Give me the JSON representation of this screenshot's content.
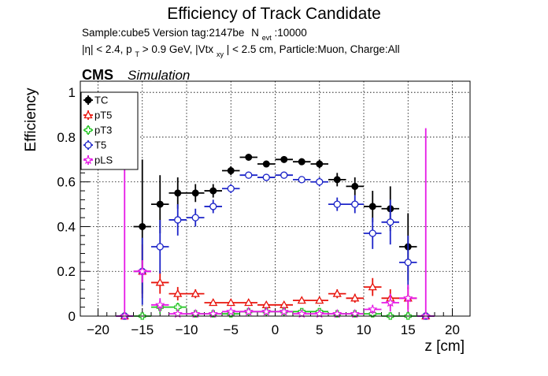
{
  "chart_data": {
    "type": "scatter",
    "title": "Efficiency of Track Candidate",
    "subtitle_line1": "Sample:cube5   Version tag:2147be",
    "subtitle_nevt_label": "N",
    "subtitle_nevt_sub": "evt",
    "subtitle_nevt_value": ":10000",
    "subtitle_line2_a": "|η| < 2.4, p",
    "subtitle_line2_sub1": "T",
    "subtitle_line2_b": " > 0.9 GeV, |Vtx",
    "subtitle_line2_sub2": "xy",
    "subtitle_line2_c": "| < 2.5 cm, Particle:Muon, Charge:All",
    "cms_label": "CMS",
    "simulation_label": "Simulation",
    "xlabel": "z [cm]",
    "ylabel": "Efficiency",
    "xlim": [
      -22,
      22
    ],
    "ylim": [
      0,
      1.05
    ],
    "grid": true,
    "legend_position": "top-left",
    "x_ticks": [
      -20,
      -15,
      -10,
      -5,
      0,
      5,
      10,
      15,
      20
    ],
    "y_ticks": [
      0,
      0.2,
      0.4,
      0.6,
      0.8,
      1
    ],
    "y_tick_labels": [
      "0",
      "0.2",
      "0.4",
      "0.6",
      "0.8",
      "1"
    ],
    "bin_half_width": 1,
    "series": [
      {
        "name": "TC",
        "color": "#000000",
        "marker": "filled-circle",
        "x": [
          -17,
          -15,
          -13,
          -11,
          -9,
          -7,
          -5,
          -3,
          -1,
          1,
          3,
          5,
          7,
          9,
          11,
          13,
          15,
          17
        ],
        "y": [
          0,
          0.4,
          0.5,
          0.55,
          0.55,
          0.56,
          0.65,
          0.71,
          0.68,
          0.7,
          0.69,
          0.68,
          0.61,
          0.58,
          0.49,
          0.48,
          0.31,
          0
        ],
        "yerr": [
          0,
          0.3,
          0.13,
          0.07,
          0.04,
          0.03,
          0.02,
          0.01,
          0.01,
          0.01,
          0.01,
          0.02,
          0.03,
          0.04,
          0.07,
          0.1,
          0.15,
          0
        ]
      },
      {
        "name": "pT5",
        "color": "#e8140c",
        "marker": "open-triangle",
        "x": [
          -17,
          -15,
          -13,
          -11,
          -9,
          -7,
          -5,
          -3,
          -1,
          1,
          3,
          5,
          7,
          9,
          11,
          13,
          15,
          17
        ],
        "y": [
          0,
          0.2,
          0.15,
          0.1,
          0.1,
          0.06,
          0.06,
          0.06,
          0.05,
          0.05,
          0.07,
          0.07,
          0.1,
          0.08,
          0.13,
          0.08,
          0.08,
          0
        ],
        "yerr": [
          0,
          0.12,
          0.05,
          0.03,
          0.02,
          0.01,
          0.01,
          0.01,
          0.01,
          0.01,
          0.01,
          0.01,
          0.02,
          0.02,
          0.04,
          0.04,
          0.05,
          0
        ]
      },
      {
        "name": "pT3",
        "color": "#22c522",
        "marker": "open-cross",
        "x": [
          -17,
          -15,
          -13,
          -11,
          -9,
          -7,
          -5,
          -3,
          -1,
          1,
          3,
          5,
          7,
          9,
          11,
          13,
          15,
          17
        ],
        "y": [
          0,
          0,
          0.04,
          0.04,
          0.01,
          0.01,
          0.01,
          0.02,
          0.02,
          0.02,
          0.02,
          0.02,
          0.01,
          0.01,
          0.01,
          0,
          0,
          0
        ],
        "yerr": [
          0,
          0,
          0.03,
          0.02,
          0.01,
          0.005,
          0.005,
          0.005,
          0.005,
          0.005,
          0.005,
          0.005,
          0.005,
          0.005,
          0.01,
          0,
          0,
          0
        ]
      },
      {
        "name": "T5",
        "color": "#1c24c8",
        "marker": "open-circle",
        "x": [
          -17,
          -15,
          -13,
          -11,
          -9,
          -7,
          -5,
          -3,
          -1,
          1,
          3,
          5,
          7,
          9,
          11,
          13,
          15,
          17
        ],
        "y": [
          0,
          0.2,
          0.31,
          0.43,
          0.44,
          0.49,
          0.57,
          0.63,
          0.62,
          0.63,
          0.61,
          0.6,
          0.5,
          0.5,
          0.37,
          0.42,
          0.24,
          0
        ],
        "yerr": [
          0,
          0.15,
          0.12,
          0.07,
          0.04,
          0.03,
          0.02,
          0.01,
          0.01,
          0.01,
          0.01,
          0.02,
          0.03,
          0.04,
          0.07,
          0.1,
          0.12,
          0
        ]
      },
      {
        "name": "pLS",
        "color": "#e619e6",
        "marker": "open-star",
        "x": [
          -17,
          -15,
          -13,
          -11,
          -9,
          -7,
          -5,
          -3,
          -1,
          1,
          3,
          5,
          7,
          9,
          11,
          13,
          15,
          17
        ],
        "y": [
          0,
          0.2,
          0.05,
          0.01,
          0.01,
          0.01,
          0.02,
          0.02,
          0.02,
          0.02,
          0.01,
          0.01,
          0.01,
          0.01,
          0.03,
          0.06,
          0.08,
          0
        ],
        "yerr": [
          0.84,
          0.05,
          0.03,
          0.01,
          0.005,
          0.005,
          0.005,
          0.005,
          0.005,
          0.005,
          0.005,
          0.005,
          0.005,
          0.005,
          0.02,
          0.04,
          0.06,
          0.84
        ]
      }
    ]
  }
}
